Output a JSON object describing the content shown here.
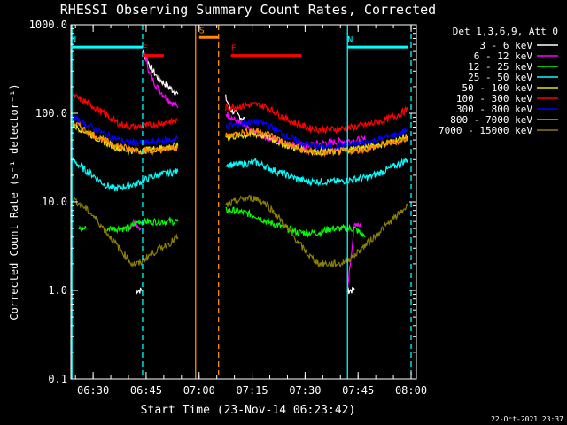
{
  "chart_data": {
    "type": "line",
    "title": "RHESSI Observing Summary Count Rates, Corrected",
    "xlabel": "Start Time (23-Nov-14 06:23:42)",
    "ylabel": "Corrected Count Rate (s⁻¹ detector⁻¹)",
    "yscale": "log",
    "ylim": [
      0.1,
      1000
    ],
    "xlim": [
      "06:23:42",
      "08:01:30"
    ],
    "x_ticks": [
      "06:30",
      "06:45",
      "07:00",
      "07:15",
      "07:30",
      "07:45",
      "08:00"
    ],
    "y_ticks": [
      "0.1",
      "1.0",
      "10.0",
      "100.0",
      "1000.0"
    ],
    "footer_date": "22-Oct-2021 23:37",
    "legend": {
      "header": "Det 1,3,6,9, Att 0",
      "placement": "right",
      "entries": [
        {
          "label": "3 - 6 keV",
          "color": "#ffffff"
        },
        {
          "label": "6 - 12 keV",
          "color": "#ff00ff"
        },
        {
          "label": "12 - 25 keV",
          "color": "#00ff00"
        },
        {
          "label": "25 - 50 keV",
          "color": "#00ffff"
        },
        {
          "label": "50 - 100 keV",
          "color": "#e6e600"
        },
        {
          "label": "100 - 300 keV",
          "color": "#ff0000"
        },
        {
          "label": "300 - 800 keV",
          "color": "#0000ff"
        },
        {
          "label": "800 - 7000 keV",
          "color": "#ff8c00"
        },
        {
          "label": "7000 - 15000 keV",
          "color": "#8b8000"
        }
      ]
    },
    "flags": [
      {
        "label": "N",
        "color": "#00ffff",
        "start": "06:23:42",
        "end": "06:44:00",
        "y": 560
      },
      {
        "label": "N",
        "color": "#00ffff",
        "start": "07:42:00",
        "end": "07:59:00",
        "y": 560
      },
      {
        "label": "S",
        "color": "#ff8c00",
        "start": "07:00:00",
        "end": "07:05:30",
        "y": 720
      },
      {
        "label": "F",
        "color": "#ff0000",
        "start": "06:44:00",
        "end": "06:50:00",
        "y": 450
      },
      {
        "label": "F",
        "color": "#ff0000",
        "start": "07:09:00",
        "end": "07:29:00",
        "y": 450
      }
    ],
    "vlines": [
      {
        "t": "06:44:00",
        "color": "#00ffff",
        "style": "dashed"
      },
      {
        "t": "06:59:00",
        "color": "#ff8c00",
        "style": "solid"
      },
      {
        "t": "07:05:30",
        "color": "#ff8c00",
        "style": "dashed"
      },
      {
        "t": "07:42:00",
        "color": "#00ffff",
        "style": "solid"
      },
      {
        "t": "08:00:00",
        "color": "#00ffff",
        "style": "dashed"
      },
      {
        "t": "06:24:00",
        "color": "#00ffff",
        "style": "solid"
      }
    ],
    "series": [
      {
        "name": "3 - 6 keV",
        "color": "#ffffff",
        "segments": [
          {
            "t": [
              "06:42:00",
              "06:43:00",
              "06:44:00"
            ],
            "v": [
              1,
              1,
              1
            ]
          },
          {
            "t": [
              "06:44:00",
              "06:46:00",
              "06:48:00",
              "06:50:00",
              "06:52:00",
              "06:54:00"
            ],
            "v": [
              500,
              350,
              260,
              220,
              190,
              165
            ]
          },
          {
            "t": [
              "07:07:30",
              "07:09:00",
              "07:11:00",
              "07:13:00"
            ],
            "v": [
              150,
              110,
              95,
              85
            ]
          },
          {
            "t": [
              "07:42:00",
              "07:43:00",
              "07:44:00"
            ],
            "v": [
              1,
              1,
              1
            ]
          }
        ]
      },
      {
        "name": "6 - 12 keV",
        "color": "#ff00ff",
        "segments": [
          {
            "t": [
              "06:44:30",
              "06:46:00",
              "06:48:00",
              "06:50:00",
              "06:52:00",
              "06:54:00"
            ],
            "v": [
              480,
              280,
              200,
              160,
              135,
              115
            ]
          },
          {
            "t": [
              "07:07:30",
              "07:10:00",
              "07:15:00",
              "07:20:00",
              "07:25:00",
              "07:30:00",
              "07:35:00",
              "07:40:00",
              "07:45:00",
              "07:47:00"
            ],
            "v": [
              100,
              85,
              62,
              52,
              45,
              43,
              46,
              48,
              50,
              50
            ]
          },
          {
            "t": [
              "06:40:00",
              "06:42:00",
              "06:43:30"
            ],
            "v": [
              5,
              6,
              5
            ]
          },
          {
            "t": [
              "07:42:00",
              "07:44:00",
              "07:46:00"
            ],
            "v": [
              1,
              6,
              5
            ]
          }
        ]
      },
      {
        "name": "12 - 25 keV",
        "color": "#00ff00",
        "segments": [
          {
            "t": [
              "06:26:00",
              "06:28:00"
            ],
            "v": [
              5,
              5
            ]
          },
          {
            "t": [
              "06:34:00",
              "06:37:00",
              "06:40:00",
              "06:43:00",
              "06:46:00",
              "06:49:00",
              "06:52:00",
              "06:54:00"
            ],
            "v": [
              5,
              5,
              5,
              6,
              6,
              6,
              6,
              6
            ]
          },
          {
            "t": [
              "07:07:30",
              "07:10:00",
              "07:13:00",
              "07:16:00",
              "07:19:00",
              "07:22:00",
              "07:25:00",
              "07:28:00",
              "07:31:00",
              "07:34:00",
              "07:37:00",
              "07:40:00",
              "07:44:00",
              "07:47:00"
            ],
            "v": [
              8,
              8,
              7.5,
              7,
              6,
              5.5,
              5,
              4.5,
              4.5,
              4.5,
              5,
              5,
              5,
              4
            ]
          }
        ]
      },
      {
        "name": "25 - 50 keV",
        "color": "#00ffff",
        "segments": [
          {
            "t": [
              "06:24:00",
              "06:27:00",
              "06:30:00",
              "06:33:00",
              "06:36:00",
              "06:39:00",
              "06:42:00",
              "06:45:00",
              "06:48:00",
              "06:51:00",
              "06:54:00"
            ],
            "v": [
              30,
              24,
              20,
              16,
              14,
              15,
              16,
              18,
              20,
              21,
              22
            ]
          },
          {
            "t": [
              "07:07:30",
              "07:10:00",
              "07:13:00",
              "07:16:00",
              "07:19:00",
              "07:22:00",
              "07:25:00",
              "07:28:00",
              "07:31:00",
              "07:34:00",
              "07:37:00",
              "07:40:00",
              "07:44:00",
              "07:48:00",
              "07:52:00",
              "07:56:00",
              "07:59:00"
            ],
            "v": [
              27,
              26,
              27,
              28,
              25,
              22,
              20,
              18,
              17,
              17,
              17,
              17,
              18,
              19,
              22,
              26,
              30
            ]
          }
        ]
      },
      {
        "name": "50 - 100 keV",
        "color": "#e6e600",
        "segments": [
          {
            "t": [
              "06:24:00",
              "06:28:00",
              "06:32:00",
              "06:36:00",
              "06:40:00",
              "06:44:00",
              "06:48:00",
              "06:52:00",
              "06:54:00"
            ],
            "v": [
              75,
              62,
              50,
              42,
              38,
              38,
              40,
              42,
              43
            ]
          },
          {
            "t": [
              "07:07:30",
              "07:10:00",
              "07:13:00",
              "07:16:00",
              "07:19:00",
              "07:22:00",
              "07:25:00",
              "07:28:00",
              "07:31:00",
              "07:34:00",
              "07:37:00",
              "07:40:00",
              "07:44:00",
              "07:48:00",
              "07:52:00",
              "07:56:00",
              "07:59:00"
            ],
            "v": [
              55,
              55,
              57,
              58,
              55,
              48,
              43,
              40,
              38,
              37,
              37,
              38,
              40,
              42,
              45,
              50,
              55
            ]
          }
        ]
      },
      {
        "name": "100 - 300 keV",
        "color": "#ff0000",
        "segments": [
          {
            "t": [
              "06:24:00",
              "06:27:00",
              "06:30:00",
              "06:33:00",
              "06:36:00",
              "06:39:00",
              "06:42:00",
              "06:45:00",
              "06:48:00",
              "06:51:00",
              "06:54:00"
            ],
            "v": [
              160,
              140,
              120,
              100,
              82,
              72,
              70,
              72,
              76,
              80,
              82
            ]
          },
          {
            "t": [
              "07:07:30",
              "07:10:00",
              "07:13:00",
              "07:16:00",
              "07:19:00",
              "07:22:00",
              "07:25:00",
              "07:28:00",
              "07:31:00",
              "07:34:00",
              "07:37:00",
              "07:40:00",
              "07:44:00",
              "07:48:00",
              "07:52:00",
              "07:56:00",
              "07:59:00"
            ],
            "v": [
              115,
              118,
              122,
              125,
              118,
              100,
              85,
              75,
              68,
              66,
              66,
              67,
              70,
              75,
              82,
              95,
              110
            ]
          }
        ]
      },
      {
        "name": "300 - 800 keV",
        "color": "#0000ff",
        "segments": [
          {
            "t": [
              "06:24:00",
              "06:28:00",
              "06:32:00",
              "06:36:00",
              "06:40:00",
              "06:44:00",
              "06:48:00",
              "06:52:00",
              "06:54:00"
            ],
            "v": [
              90,
              75,
              62,
              52,
              47,
              46,
              48,
              50,
              52
            ]
          },
          {
            "t": [
              "07:07:30",
              "07:10:00",
              "07:13:00",
              "07:16:00",
              "07:19:00",
              "07:22:00",
              "07:25:00",
              "07:28:00",
              "07:31:00",
              "07:34:00",
              "07:37:00",
              "07:40:00",
              "07:44:00",
              "07:48:00",
              "07:52:00",
              "07:56:00",
              "07:59:00"
            ],
            "v": [
              72,
              74,
              78,
              80,
              76,
              64,
              55,
              48,
              44,
              42,
              42,
              43,
              45,
              48,
              52,
              58,
              65
            ]
          }
        ]
      },
      {
        "name": "800 - 7000 keV",
        "color": "#ff8c00",
        "segments": [
          {
            "t": [
              "06:24:00",
              "06:28:00",
              "06:32:00",
              "06:36:00",
              "06:40:00",
              "06:44:00",
              "06:48:00",
              "06:52:00",
              "06:54:00"
            ],
            "v": [
              80,
              64,
              52,
              44,
              40,
              38,
              38,
              40,
              41
            ]
          },
          {
            "t": [
              "07:07:30",
              "07:10:00",
              "07:13:00",
              "07:16:00",
              "07:19:00",
              "07:22:00",
              "07:25:00",
              "07:28:00",
              "07:31:00",
              "07:34:00",
              "07:37:00",
              "07:40:00",
              "07:44:00",
              "07:48:00",
              "07:52:00",
              "07:56:00",
              "07:59:00"
            ],
            "v": [
              55,
              58,
              62,
              64,
              60,
              52,
              45,
              40,
              37,
              36,
              36,
              37,
              38,
              40,
              44,
              48,
              52
            ]
          }
        ]
      },
      {
        "name": "7000 - 15000 keV",
        "color": "#8b8000",
        "segments": [
          {
            "t": [
              "06:24:00",
              "06:27:00",
              "06:30:00",
              "06:33:00",
              "06:36:00",
              "06:39:00",
              "06:41:00",
              "06:43:00",
              "06:46:00",
              "06:49:00",
              "06:52:00",
              "06:54:00"
            ],
            "v": [
              11,
              9,
              7,
              5,
              3.5,
              2.5,
              2,
              2,
              2.5,
              3,
              3.5,
              4
            ]
          },
          {
            "t": [
              "07:07:30",
              "07:10:00",
              "07:13:00",
              "07:16:00",
              "07:19:00",
              "07:22:00",
              "07:25:00",
              "07:28:00",
              "07:31:00",
              "07:34:00",
              "07:37:00",
              "07:40:00",
              "07:44:00",
              "07:48:00",
              "07:52:00",
              "07:56:00",
              "07:59:00"
            ],
            "v": [
              9,
              10,
              11,
              11,
              9.5,
              7,
              5,
              3.5,
              2.5,
              2,
              2,
              2,
              2.5,
              3.5,
              5,
              7,
              9
            ]
          }
        ]
      }
    ]
  }
}
